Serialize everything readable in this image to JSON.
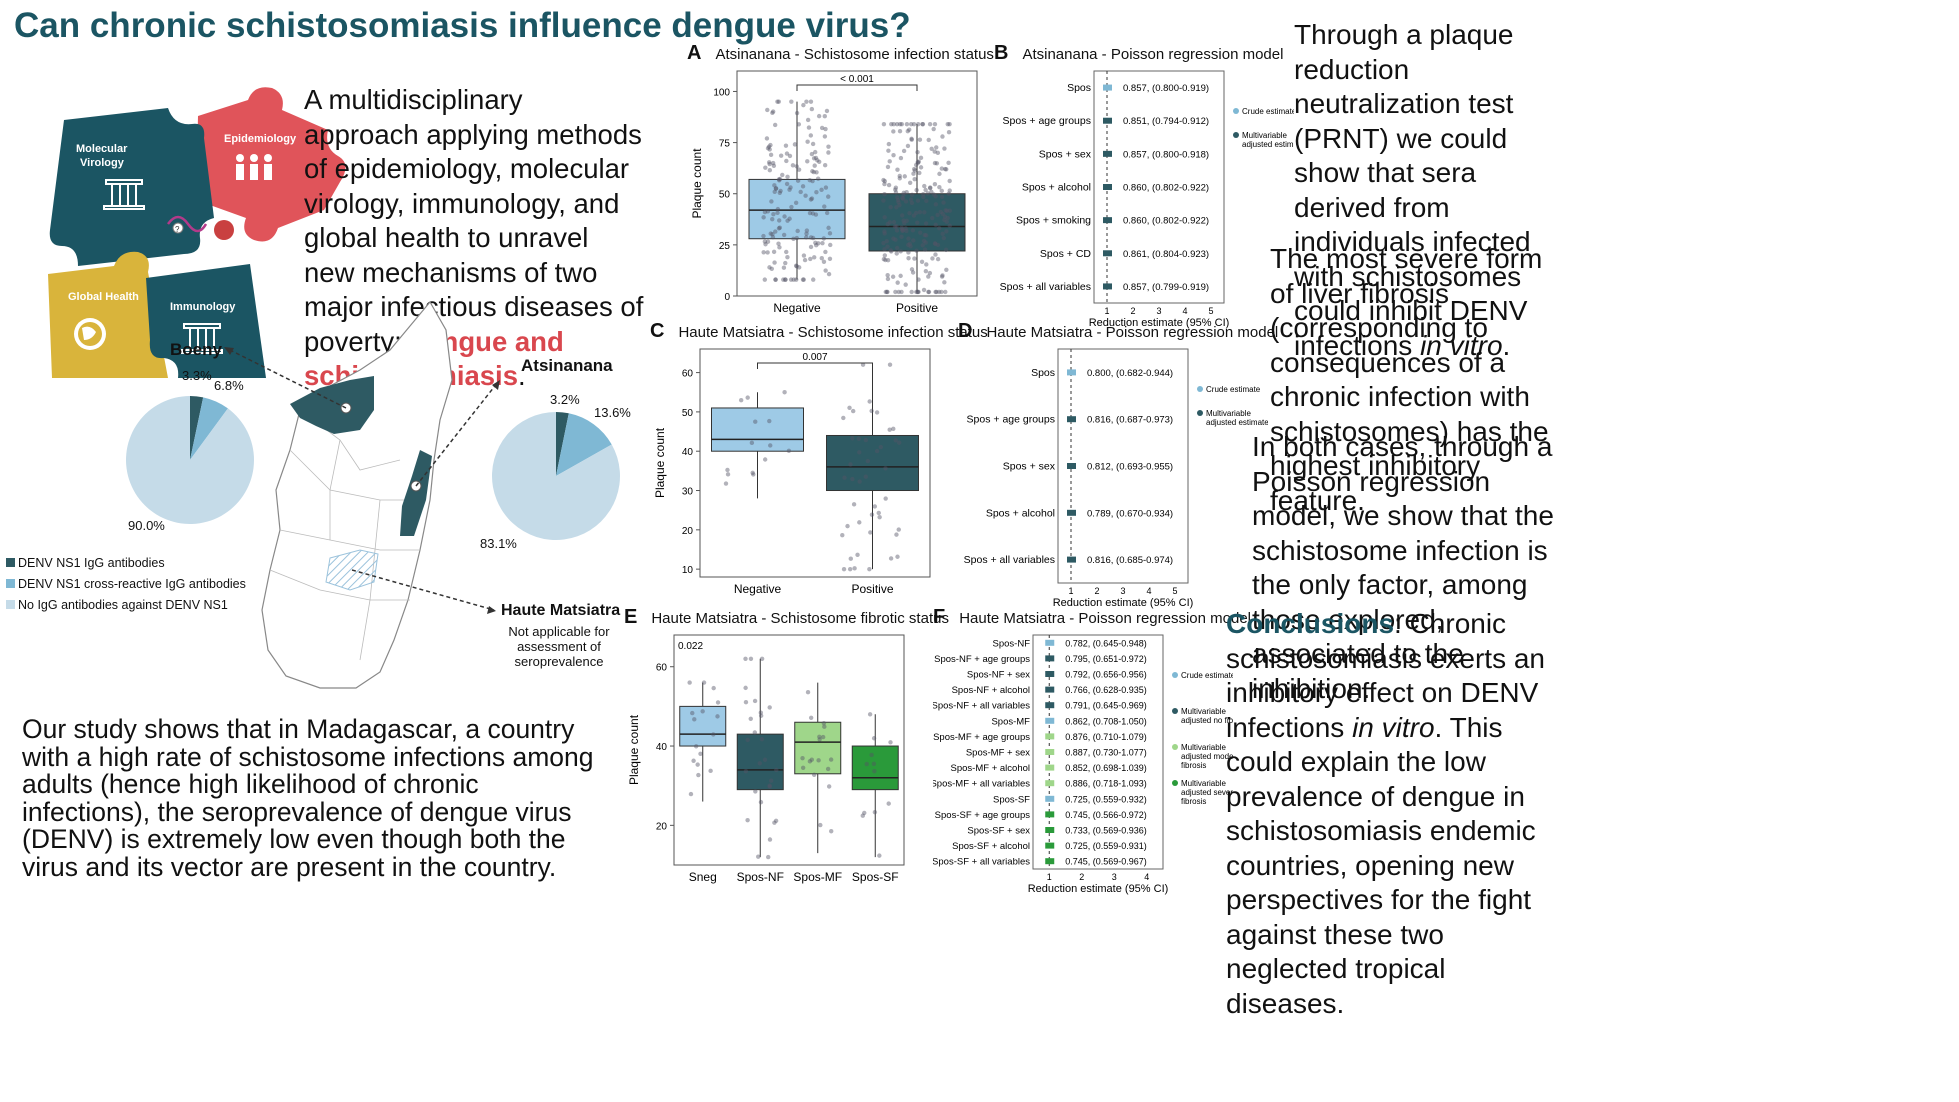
{
  "title": "Can chronic schistosomiasis influence dengue virus?",
  "intro": {
    "text": "A multidisciplinary approach applying methods of epidemiology, molecular virology, immunology, and global health to unravel new mechanisms of two major infectious diseases of poverty:",
    "highlight": "dengue and schistosomiasis",
    "tail": "."
  },
  "puzzle": {
    "molecular": "Molecular Virology",
    "epidemiology": "Epidemiology",
    "global_health": "Global Health",
    "immunology": "Immunology",
    "colors": {
      "molecular": "#1b5563",
      "epidemiology": "#e0545a",
      "global": "#d9b43b",
      "immuno": "#1b5563"
    }
  },
  "map": {
    "boeny": {
      "label": "Boeny",
      "dark": "3.3%",
      "mid": "6.8%",
      "light": "90.0%",
      "dark_val": 3.3,
      "mid_val": 6.8,
      "light_val": 90.0
    },
    "atsinanana": {
      "label": "Atsinanana",
      "dark": "3.2%",
      "mid": "13.6%",
      "light": "83.1%",
      "dark_val": 3.2,
      "mid_val": 13.6,
      "light_val": 83.1
    },
    "haute": {
      "label": "Haute Matsiatra",
      "note": "Not applicable for assessment of seroprevalence"
    },
    "legend": [
      {
        "label": "DENV NS1 IgG antibodies",
        "color": "#2e5a63"
      },
      {
        "label": "DENV NS1 cross-reactive IgG antibodies",
        "color": "#7fb8d4"
      },
      {
        "label": "No IgG antibodies against DENV NS1",
        "color": "#c5dbe8"
      }
    ]
  },
  "bottom_text": "Our study shows that in Madagascar, a country with a high rate of schistosome infections among adults (hence high likelihood of chronic infections), the seroprevalence of dengue virus (DENV) is extremely low even though both the virus and its vector are present in the country.",
  "panels": {
    "A": {
      "letter": "A",
      "title": "Atsinanana - Schistosome infection status",
      "ylabel": "Plaque count",
      "pval": "< 0.001",
      "yticks": [
        "0",
        "25",
        "50",
        "75",
        "100"
      ],
      "xcats": [
        "Negative",
        "Positive"
      ]
    },
    "B": {
      "letter": "B",
      "title": "Atsinanana - Poisson regression model",
      "xlabel": "Reduction estimate (95% CI)",
      "xticks": [
        "1",
        "2",
        "3",
        "4",
        "5"
      ],
      "rows": [
        [
          "Spos",
          "0.857, (0.800-0.919)"
        ],
        [
          "Spos + age groups",
          "0.851, (0.794-0.912)"
        ],
        [
          "Spos + sex",
          "0.857, (0.800-0.918)"
        ],
        [
          "Spos + alcohol",
          "0.860, (0.802-0.922)"
        ],
        [
          "Spos + smoking",
          "0.860, (0.802-0.922)"
        ],
        [
          "Spos + CD",
          "0.861, (0.804-0.923)"
        ],
        [
          "Spos + all variables",
          "0.857, (0.799-0.919)"
        ]
      ],
      "legend": [
        "Crude estimate",
        "Multivariable adjusted estimate"
      ]
    },
    "C": {
      "letter": "C",
      "title": "Haute Matsiatra - Schistosome infection status",
      "ylabel": "Plaque count",
      "pval": "0.007",
      "yticks": [
        "10",
        "20",
        "30",
        "40",
        "50",
        "60"
      ],
      "xcats": [
        "Negative",
        "Positive"
      ]
    },
    "D": {
      "letter": "D",
      "title": "Haute Matsiatra - Poisson regression model",
      "xlabel": "Reduction estimate (95% CI)",
      "xticks": [
        "1",
        "2",
        "3",
        "4",
        "5"
      ],
      "rows": [
        [
          "Spos",
          "0.800, (0.682-0.944)"
        ],
        [
          "Spos + age groups",
          "0.816, (0.687-0.973)"
        ],
        [
          "Spos + sex",
          "0.812, (0.693-0.955)"
        ],
        [
          "Spos + alcohol",
          "0.789, (0.670-0.934)"
        ],
        [
          "Spos + all variables",
          "0.816, (0.685-0.974)"
        ]
      ],
      "legend": [
        "Crude estimate",
        "Multivariable adjusted estimate"
      ]
    },
    "E": {
      "letter": "E",
      "title": "Haute Matsiatra - Schistosome fibrotic status",
      "ylabel": "Plaque count",
      "pval": "0.022",
      "yticks": [
        "20",
        "40",
        "60"
      ],
      "xcats": [
        "Sneg",
        "Spos-NF",
        "Spos-MF",
        "Spos-SF"
      ]
    },
    "F": {
      "letter": "F",
      "title": "Haute Matsiatra - Poisson regression model",
      "xlabel": "Reduction estimate (95% CI)",
      "xticks": [
        "1",
        "2",
        "3",
        "4"
      ],
      "rows": [
        [
          "Spos-NF",
          "0.782, (0.645-0.948)"
        ],
        [
          "Spos-NF + age groups",
          "0.795, (0.651-0.972)"
        ],
        [
          "Spos-NF + sex",
          "0.792, (0.656-0.956)"
        ],
        [
          "Spos-NF + alcohol",
          "0.766, (0.628-0.935)"
        ],
        [
          "Spos-NF + all variables",
          "0.791, (0.645-0.969)"
        ],
        [
          "Spos-MF",
          "0.862, (0.708-1.050)"
        ],
        [
          "Spos-MF + age groups",
          "0.876, (0.710-1.079)"
        ],
        [
          "Spos-MF + sex",
          "0.887, (0.730-1.077)"
        ],
        [
          "Spos-MF + alcohol",
          "0.852, (0.698-1.039)"
        ],
        [
          "Spos-MF + all variables",
          "0.886, (0.718-1.093)"
        ],
        [
          "Spos-SF",
          "0.725, (0.559-0.932)"
        ],
        [
          "Spos-SF + age groups",
          "0.745, (0.566-0.972)"
        ],
        [
          "Spos-SF + sex",
          "0.733, (0.569-0.936)"
        ],
        [
          "Spos-SF + alcohol",
          "0.725, (0.559-0.931)"
        ],
        [
          "Spos-SF + all variables",
          "0.745, (0.569-0.967)"
        ]
      ],
      "legend": [
        "Crude estimate",
        "Multivariable adjusted no fibrosis",
        "Multivariable adjusted moderate fibrosis",
        "Multivariable adjusted severe fibrosis"
      ]
    }
  },
  "right": {
    "p1a": "Through a plaque reduction neutralization test (PRNT) we could show that sera derived from individuals infected with schistosomes could inhibit DENV infections",
    "p1b": "in vitro",
    "p1c": ".",
    "p2": "The most severe form of liver fibrosis (corresponding to consequences of a chronic infection with schistosomes) has the highest inhibitory feature.",
    "p3": "In both cases, through a Poisson regression model, we show that the schistosome infection is the only factor, among those explored, associated to the inhibition.",
    "c_label": "Conclusions",
    "c_text1": ": Chronic schistosomiasis exerts an inhibitory effect on DENV infections",
    "c_italic": "in vitro",
    "c_text2": ". This could explain the low prevalence of dengue in schistosomiasis endemic countries, opening new perspectives for the fight against these two neglected tropical diseases."
  }
}
